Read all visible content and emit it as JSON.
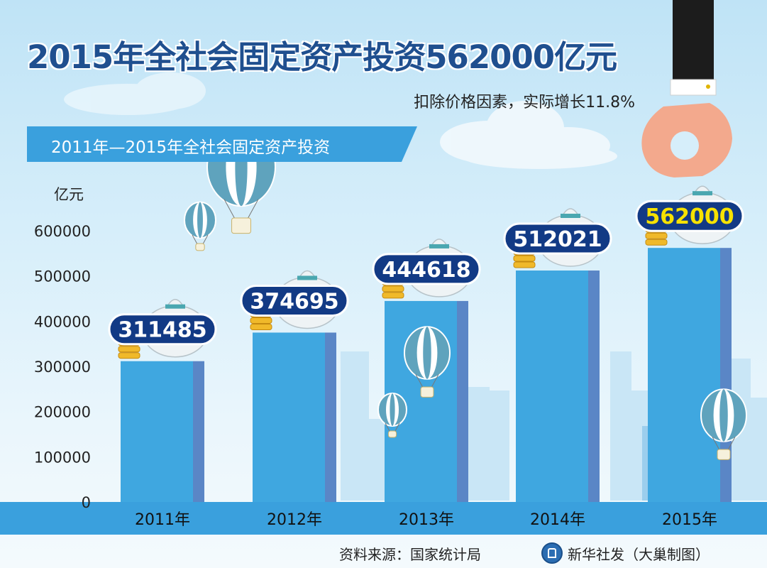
{
  "title": "2015年全社会固定资产投资562000亿元",
  "subtitle": "扣除价格因素，实际增长11.8%",
  "banner": "2011年—2015年全社会固定资产投资",
  "unit": "亿元",
  "footer": {
    "source": "资料来源：国家统计局",
    "credit": "新华社发（大巢制图）"
  },
  "colors": {
    "bar": "#3fa7e0",
    "bar_side": "#5a86c6",
    "axis_band": "#3aa0dd",
    "label_bg": "#123a85",
    "label_text": "#ffffff",
    "highlight_text": "#f6e200",
    "title": "#1f4f8f"
  },
  "chart_data": {
    "type": "bar",
    "categories": [
      "2011年",
      "2012年",
      "2013年",
      "2014年",
      "2015年"
    ],
    "values": [
      311485,
      374695,
      444618,
      512021,
      562000
    ],
    "value_labels": [
      "311485",
      "374695",
      "444618",
      "512021",
      "562000"
    ],
    "highlight_index": 4,
    "ylabel": "亿元",
    "ylim": [
      0,
      600000
    ],
    "yticks": [
      "0",
      "100000",
      "200000",
      "300000",
      "400000",
      "500000",
      "600000"
    ],
    "grid": false
  },
  "icons": [
    "hot-air-balloon-icon",
    "money-bag-icon",
    "coin-stack-icon",
    "hand-icon",
    "city-skyline",
    "cloud-icon"
  ]
}
